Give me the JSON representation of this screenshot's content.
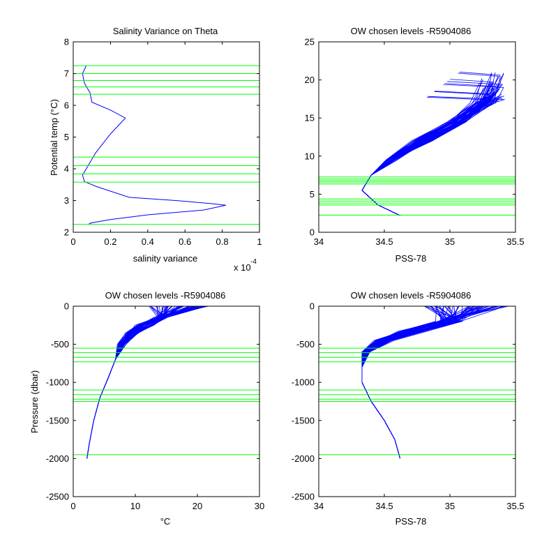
{
  "figure": {
    "background": "#ffffff",
    "axis_color": "#000000",
    "profile_color": "#0000ff",
    "level_color": "#00ff00"
  },
  "chart_data": [
    {
      "type": "line",
      "title": "Salinity Variance on Theta",
      "xlabel": "salinity variance",
      "ylabel": "Potential temp (°C)",
      "xlim": [
        0,
        1
      ],
      "ylim": [
        2,
        8
      ],
      "xticks": [
        "0",
        "0.2",
        "0.4",
        "0.6",
        "0.8",
        "1"
      ],
      "yticks": [
        "2",
        "3",
        "4",
        "5",
        "6",
        "7",
        "8"
      ],
      "x_exponent": "x 10",
      "x_exponent_power": "-4",
      "series": [
        {
          "x": [
            0.07,
            0.05,
            0.06,
            0.09,
            0.1,
            0.2,
            0.28,
            0.2,
            0.12,
            0.08,
            0.05,
            0.06,
            0.12,
            0.3,
            0.55,
            0.75,
            0.82,
            0.7,
            0.4,
            0.2,
            0.1,
            0.08
          ],
          "y": [
            7.25,
            7.0,
            6.7,
            6.4,
            6.1,
            5.85,
            5.6,
            5.1,
            4.5,
            4.1,
            3.8,
            3.6,
            3.45,
            3.1,
            3.0,
            2.9,
            2.85,
            2.7,
            2.55,
            2.4,
            2.3,
            2.25
          ]
        }
      ],
      "hlines": [
        7.25,
        7.0,
        6.78,
        6.58,
        6.35,
        4.37,
        4.1,
        3.84,
        3.58,
        2.25
      ]
    },
    {
      "type": "line",
      "title": "OW chosen levels -R5904086",
      "xlabel": "PSS-78",
      "ylabel": "",
      "xlim": [
        34,
        35.5
      ],
      "ylim": [
        0,
        25
      ],
      "xticks": [
        "34",
        "34.5",
        "35",
        "35.5"
      ],
      "yticks": [
        "0",
        "5",
        "10",
        "15",
        "20",
        "25"
      ],
      "profile_count": 60,
      "hlines": [
        2.25,
        3.58,
        3.84,
        4.1,
        4.37,
        6.35,
        6.58,
        6.78,
        7.0,
        7.25
      ]
    },
    {
      "type": "line",
      "title": "OW chosen levels -R5904086",
      "xlabel": "°C",
      "ylabel": "Pressure (dbar)",
      "xlim": [
        0,
        30
      ],
      "ylim": [
        -2500,
        0
      ],
      "xticks": [
        "0",
        "10",
        "20",
        "30"
      ],
      "yticks": [
        "0",
        "-500",
        "-1000",
        "-1500",
        "-2000",
        "-2500"
      ],
      "profile_count": 60,
      "hlines": [
        -550,
        -610,
        -670,
        -730,
        -1100,
        -1160,
        -1220,
        -1250,
        -1950
      ]
    },
    {
      "type": "line",
      "title": "OW chosen levels -R5904086",
      "xlabel": "PSS-78",
      "ylabel": "",
      "xlim": [
        34,
        35.5
      ],
      "ylim": [
        -2500,
        0
      ],
      "xticks": [
        "34",
        "34.5",
        "35",
        "35.5"
      ],
      "yticks": [
        "0",
        "-500",
        "-1000",
        "-1500",
        "-2000",
        "-2500"
      ],
      "profile_count": 60,
      "hlines": [
        -550,
        -610,
        -670,
        -730,
        -1100,
        -1160,
        -1220,
        -1250,
        -1950
      ]
    }
  ]
}
